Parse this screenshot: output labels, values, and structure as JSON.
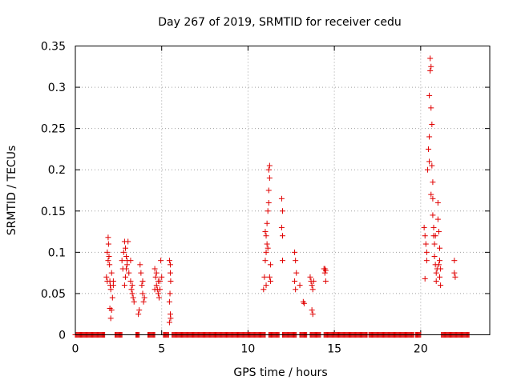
{
  "chart_data": {
    "type": "scatter",
    "title": "Day 267 of 2019, SRMTID for receiver cedu",
    "xlabel": "GPS time / hours",
    "ylabel": "SRMTID / TECUs",
    "xlim": [
      0,
      24
    ],
    "ylim": [
      0,
      0.35
    ],
    "xticks": [
      0,
      5,
      10,
      15,
      20
    ],
    "xtick_labels": [
      "0",
      "5",
      "10",
      "15",
      "20"
    ],
    "yticks": [
      0,
      0.05,
      0.1,
      0.15,
      0.2,
      0.25,
      0.3,
      0.35
    ],
    "ytick_labels": [
      "0",
      "0.05",
      "0.1",
      "0.15",
      "0.2",
      "0.25",
      "0.3",
      "0.35"
    ],
    "grid": true,
    "marker": "+",
    "color": "#e00000",
    "series": [
      {
        "name": "SRMTID",
        "points": [
          [
            1.8,
            0.07
          ],
          [
            1.85,
            0.1
          ],
          [
            1.9,
            0.118
          ],
          [
            1.92,
            0.11
          ],
          [
            1.95,
            0.095
          ],
          [
            1.98,
            0.085
          ],
          [
            2.0,
            0.065
          ],
          [
            2.02,
            0.06
          ],
          [
            2.05,
            0.055
          ],
          [
            2.0,
            0.032
          ],
          [
            2.05,
            0.02
          ],
          [
            2.1,
            0.03
          ],
          [
            2.15,
            0.045
          ],
          [
            2.2,
            0.06
          ],
          [
            2.1,
            0.075
          ],
          [
            1.85,
            0.065
          ],
          [
            1.9,
            0.09
          ],
          [
            2.2,
            0.065
          ],
          [
            2.7,
            0.09
          ],
          [
            2.75,
            0.08
          ],
          [
            2.8,
            0.1
          ],
          [
            2.85,
            0.113
          ],
          [
            2.9,
            0.105
          ],
          [
            2.95,
            0.095
          ],
          [
            3.0,
            0.09
          ],
          [
            3.05,
            0.113
          ],
          [
            3.0,
            0.085
          ],
          [
            3.1,
            0.075
          ],
          [
            2.9,
            0.07
          ],
          [
            2.85,
            0.06
          ],
          [
            3.2,
            0.065
          ],
          [
            3.25,
            0.055
          ],
          [
            3.3,
            0.05
          ],
          [
            3.35,
            0.045
          ],
          [
            3.4,
            0.04
          ],
          [
            3.3,
            0.06
          ],
          [
            3.2,
            0.09
          ],
          [
            2.95,
            0.08
          ],
          [
            3.75,
            0.085
          ],
          [
            3.8,
            0.075
          ],
          [
            3.85,
            0.06
          ],
          [
            3.9,
            0.05
          ],
          [
            3.95,
            0.04
          ],
          [
            3.7,
            0.03
          ],
          [
            3.65,
            0.025
          ],
          [
            3.9,
            0.065
          ],
          [
            4.0,
            0.045
          ],
          [
            4.6,
            0.08
          ],
          [
            4.65,
            0.07
          ],
          [
            4.7,
            0.06
          ],
          [
            4.75,
            0.055
          ],
          [
            4.8,
            0.05
          ],
          [
            4.85,
            0.045
          ],
          [
            4.9,
            0.065
          ],
          [
            4.95,
            0.09
          ],
          [
            4.7,
            0.075
          ],
          [
            4.8,
            0.065
          ],
          [
            4.9,
            0.055
          ],
          [
            5.0,
            0.07
          ],
          [
            4.6,
            0.055
          ],
          [
            5.45,
            0.09
          ],
          [
            5.5,
            0.085
          ],
          [
            5.5,
            0.075
          ],
          [
            5.52,
            0.065
          ],
          [
            5.48,
            0.05
          ],
          [
            5.45,
            0.04
          ],
          [
            5.5,
            0.025
          ],
          [
            5.52,
            0.02
          ],
          [
            5.45,
            0.015
          ],
          [
            10.9,
            0.055
          ],
          [
            10.95,
            0.07
          ],
          [
            11.0,
            0.09
          ],
          [
            11.05,
            0.1
          ],
          [
            11.1,
            0.11
          ],
          [
            11.05,
            0.12
          ],
          [
            11.0,
            0.125
          ],
          [
            11.1,
            0.135
          ],
          [
            11.15,
            0.15
          ],
          [
            11.2,
            0.16
          ],
          [
            11.2,
            0.175
          ],
          [
            11.25,
            0.19
          ],
          [
            11.2,
            0.2
          ],
          [
            11.25,
            0.205
          ],
          [
            11.15,
            0.105
          ],
          [
            11.3,
            0.085
          ],
          [
            11.25,
            0.07
          ],
          [
            11.3,
            0.065
          ],
          [
            11.05,
            0.06
          ],
          [
            11.95,
            0.165
          ],
          [
            12.0,
            0.15
          ],
          [
            11.95,
            0.13
          ],
          [
            12.0,
            0.12
          ],
          [
            12.0,
            0.09
          ],
          [
            12.7,
            0.1
          ],
          [
            12.75,
            0.09
          ],
          [
            12.8,
            0.075
          ],
          [
            12.7,
            0.065
          ],
          [
            12.75,
            0.055
          ],
          [
            13.0,
            0.06
          ],
          [
            13.2,
            0.04
          ],
          [
            13.25,
            0.038
          ],
          [
            13.6,
            0.07
          ],
          [
            13.65,
            0.065
          ],
          [
            13.7,
            0.06
          ],
          [
            13.75,
            0.055
          ],
          [
            13.8,
            0.065
          ],
          [
            13.7,
            0.03
          ],
          [
            13.75,
            0.025
          ],
          [
            14.4,
            0.08
          ],
          [
            14.45,
            0.075
          ],
          [
            14.5,
            0.065
          ],
          [
            14.45,
            0.08
          ],
          [
            14.5,
            0.078
          ],
          [
            20.2,
            0.13
          ],
          [
            20.25,
            0.12
          ],
          [
            20.3,
            0.11
          ],
          [
            20.35,
            0.1
          ],
          [
            20.25,
            0.068
          ],
          [
            20.35,
            0.09
          ],
          [
            20.4,
            0.2
          ],
          [
            20.45,
            0.225
          ],
          [
            20.5,
            0.24
          ],
          [
            20.5,
            0.29
          ],
          [
            20.55,
            0.32
          ],
          [
            20.55,
            0.335
          ],
          [
            20.6,
            0.325
          ],
          [
            20.6,
            0.275
          ],
          [
            20.65,
            0.255
          ],
          [
            20.65,
            0.205
          ],
          [
            20.7,
            0.165
          ],
          [
            20.7,
            0.145
          ],
          [
            20.75,
            0.13
          ],
          [
            20.75,
            0.12
          ],
          [
            20.8,
            0.11
          ],
          [
            20.8,
            0.095
          ],
          [
            20.85,
            0.085
          ],
          [
            20.9,
            0.075
          ],
          [
            20.95,
            0.08
          ],
          [
            20.9,
            0.065
          ],
          [
            21.0,
            0.16
          ],
          [
            21.0,
            0.14
          ],
          [
            21.05,
            0.125
          ],
          [
            21.1,
            0.105
          ],
          [
            21.1,
            0.09
          ],
          [
            21.15,
            0.08
          ],
          [
            21.1,
            0.07
          ],
          [
            21.15,
            0.06
          ],
          [
            20.5,
            0.21
          ],
          [
            20.6,
            0.17
          ],
          [
            20.7,
            0.185
          ],
          [
            20.85,
            0.12
          ],
          [
            21.05,
            0.085
          ],
          [
            21.95,
            0.09
          ],
          [
            21.95,
            0.075
          ],
          [
            22.0,
            0.07
          ]
        ]
      }
    ],
    "zero_runs": [
      [
        0.0,
        1.7
      ],
      [
        2.3,
        2.7
      ],
      [
        3.5,
        3.7
      ],
      [
        4.2,
        4.6
      ],
      [
        5.1,
        5.4
      ],
      [
        5.6,
        11.0
      ],
      [
        11.2,
        11.8
      ],
      [
        12.0,
        12.8
      ],
      [
        13.0,
        13.4
      ],
      [
        13.6,
        14.2
      ],
      [
        14.4,
        16.9
      ],
      [
        17.0,
        19.6
      ],
      [
        19.7,
        20.0
      ],
      [
        21.2,
        22.8
      ]
    ]
  }
}
